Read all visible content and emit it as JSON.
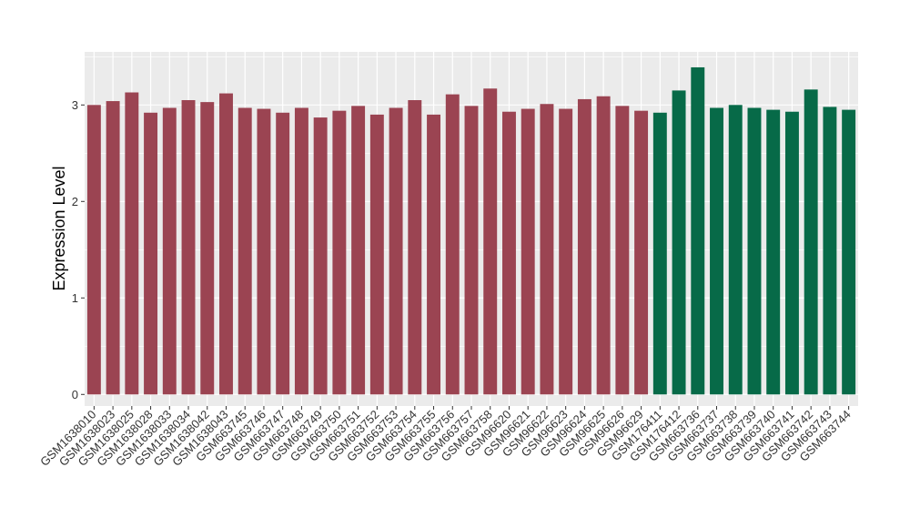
{
  "chart_data": {
    "type": "bar",
    "title": "",
    "xlabel": "",
    "ylabel": "Expression Level",
    "ylim": [
      -0.12,
      3.55
    ],
    "y_ticks": [
      0,
      1,
      2,
      3
    ],
    "grid": true,
    "panel_background": "#ebebeb",
    "grid_color": "#ffffff",
    "categories": [
      "GSM1638010",
      "GSM1638023",
      "GSM1638025",
      "GSM1638028",
      "GSM1638033",
      "GSM1638034",
      "GSM1638042",
      "GSM1638043",
      "GSM663745",
      "GSM663746",
      "GSM663747",
      "GSM663748",
      "GSM663749",
      "GSM663750",
      "GSM663751",
      "GSM663752",
      "GSM663753",
      "GSM663754",
      "GSM663755",
      "GSM663756",
      "GSM663757",
      "GSM663758",
      "GSM96620",
      "GSM96621",
      "GSM96622",
      "GSM96623",
      "GSM96624",
      "GSM96625",
      "GSM96626",
      "GSM96629",
      "GSM176411",
      "GSM176412",
      "GSM663736",
      "GSM663737",
      "GSM663738",
      "GSM663739",
      "GSM663740",
      "GSM663741",
      "GSM663742",
      "GSM663743",
      "GSM663744"
    ],
    "values": [
      3.0,
      3.04,
      3.13,
      2.92,
      2.97,
      3.05,
      3.03,
      3.12,
      2.97,
      2.96,
      2.92,
      2.97,
      2.87,
      2.94,
      2.99,
      2.9,
      2.97,
      3.05,
      2.9,
      3.11,
      2.99,
      3.17,
      2.93,
      2.96,
      3.01,
      2.96,
      3.06,
      3.09,
      2.99,
      2.94,
      2.92,
      3.15,
      3.39,
      2.97,
      3.0,
      2.97,
      2.95,
      2.93,
      3.16,
      2.98,
      2.95
    ],
    "bar_colors": [
      "#9b4452",
      "#9b4452",
      "#9b4452",
      "#9b4452",
      "#9b4452",
      "#9b4452",
      "#9b4452",
      "#9b4452",
      "#9b4452",
      "#9b4452",
      "#9b4452",
      "#9b4452",
      "#9b4452",
      "#9b4452",
      "#9b4452",
      "#9b4452",
      "#9b4452",
      "#9b4452",
      "#9b4452",
      "#9b4452",
      "#9b4452",
      "#9b4452",
      "#9b4452",
      "#9b4452",
      "#9b4452",
      "#9b4452",
      "#9b4452",
      "#9b4452",
      "#9b4452",
      "#9b4452",
      "#076a48",
      "#076a48",
      "#076a48",
      "#076a48",
      "#076a48",
      "#076a48",
      "#076a48",
      "#076a48",
      "#076a48",
      "#076a48",
      "#076a48"
    ]
  }
}
